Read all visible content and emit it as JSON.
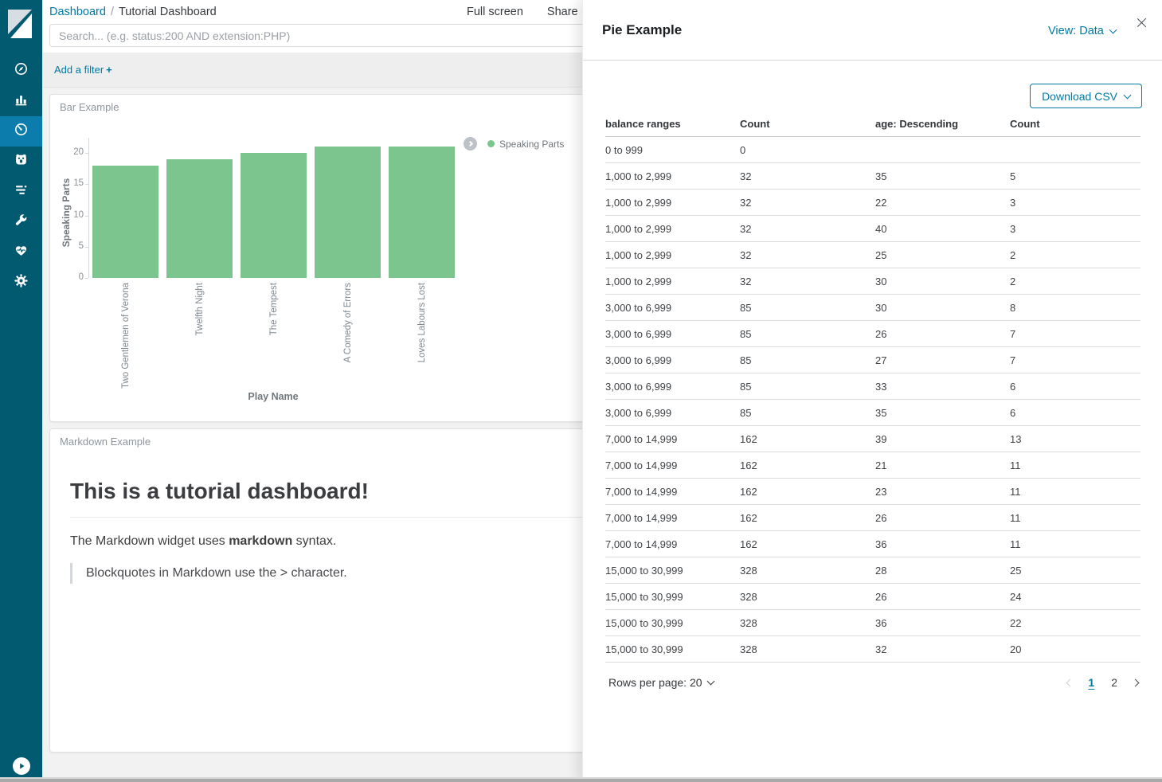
{
  "colors": {
    "sidebar_bg": "#015a70",
    "sidebar_active_bg": "#0b7cab",
    "link_blue": "#0079a5",
    "bar_green": "#7cc58e",
    "panel_title_gray": "#8e959c"
  },
  "sidebar": {
    "items": [
      {
        "id": "discover",
        "icon": "compass-icon",
        "active": false
      },
      {
        "id": "visualize",
        "icon": "bar-chart-icon",
        "active": false
      },
      {
        "id": "dashboard",
        "icon": "gauge-icon",
        "active": true
      },
      {
        "id": "machine-learning",
        "icon": "robot-face-icon",
        "active": false
      },
      {
        "id": "timelion",
        "icon": "timeline-icon",
        "active": false
      },
      {
        "id": "dev-tools",
        "icon": "wrench-icon",
        "active": false
      },
      {
        "id": "monitoring",
        "icon": "heartbeat-icon",
        "active": false
      },
      {
        "id": "management",
        "icon": "gear-icon",
        "active": false
      }
    ]
  },
  "topnav": {
    "breadcrumb": {
      "link": "Dashboard",
      "separator": "/",
      "current": "Tutorial Dashboard"
    },
    "menu": [
      "Full screen",
      "Share"
    ]
  },
  "search": {
    "placeholder": "Search... (e.g. status:200 AND extension:PHP)"
  },
  "filter_bar": {
    "add_filter": "Add a filter",
    "plus": "+"
  },
  "bar_panel": {
    "title": "Bar Example"
  },
  "chart_data": {
    "type": "bar",
    "title": "Bar Example",
    "categories": [
      "Two Gentlemen of Verona",
      "Twelfth Night",
      "The Tempest",
      "A Comedy of Errors",
      "Loves Labours Lost"
    ],
    "values": [
      18,
      19,
      20,
      21,
      21
    ],
    "series_name": "Speaking Parts",
    "xlabel": "Play Name",
    "ylabel": "Speaking Parts",
    "ylim": [
      0,
      22
    ],
    "yticks": [
      0,
      5,
      10,
      15,
      20
    ],
    "grid": false,
    "legend_position": "right",
    "bar_color": "#7cc58e"
  },
  "markdown_panel": {
    "title": "Markdown Example",
    "heading": "This is a tutorial dashboard!",
    "para_before": "The Markdown widget uses ",
    "para_bold": "markdown",
    "para_after": " syntax.",
    "blockquote": "Blockquotes in Markdown use the > character."
  },
  "flyout": {
    "title": "Pie Example",
    "view_label": "View: Data",
    "download_csv": "Download CSV",
    "table": {
      "headers": [
        "balance ranges",
        "Count",
        "age: Descending",
        "Count"
      ],
      "rows": [
        [
          "0 to 999",
          "0",
          "",
          ""
        ],
        [
          "1,000 to 2,999",
          "32",
          "35",
          "5"
        ],
        [
          "1,000 to 2,999",
          "32",
          "22",
          "3"
        ],
        [
          "1,000 to 2,999",
          "32",
          "40",
          "3"
        ],
        [
          "1,000 to 2,999",
          "32",
          "25",
          "2"
        ],
        [
          "1,000 to 2,999",
          "32",
          "30",
          "2"
        ],
        [
          "3,000 to 6,999",
          "85",
          "30",
          "8"
        ],
        [
          "3,000 to 6,999",
          "85",
          "26",
          "7"
        ],
        [
          "3,000 to 6,999",
          "85",
          "27",
          "7"
        ],
        [
          "3,000 to 6,999",
          "85",
          "33",
          "6"
        ],
        [
          "3,000 to 6,999",
          "85",
          "35",
          "6"
        ],
        [
          "7,000 to 14,999",
          "162",
          "39",
          "13"
        ],
        [
          "7,000 to 14,999",
          "162",
          "21",
          "11"
        ],
        [
          "7,000 to 14,999",
          "162",
          "23",
          "11"
        ],
        [
          "7,000 to 14,999",
          "162",
          "26",
          "11"
        ],
        [
          "7,000 to 14,999",
          "162",
          "36",
          "11"
        ],
        [
          "15,000 to 30,999",
          "328",
          "28",
          "25"
        ],
        [
          "15,000 to 30,999",
          "328",
          "26",
          "24"
        ],
        [
          "15,000 to 30,999",
          "328",
          "36",
          "22"
        ],
        [
          "15,000 to 30,999",
          "328",
          "32",
          "20"
        ]
      ]
    },
    "pagination": {
      "rows_per_page": "Rows per page: 20",
      "pages": [
        "1",
        "2"
      ],
      "active_page": "1"
    }
  }
}
